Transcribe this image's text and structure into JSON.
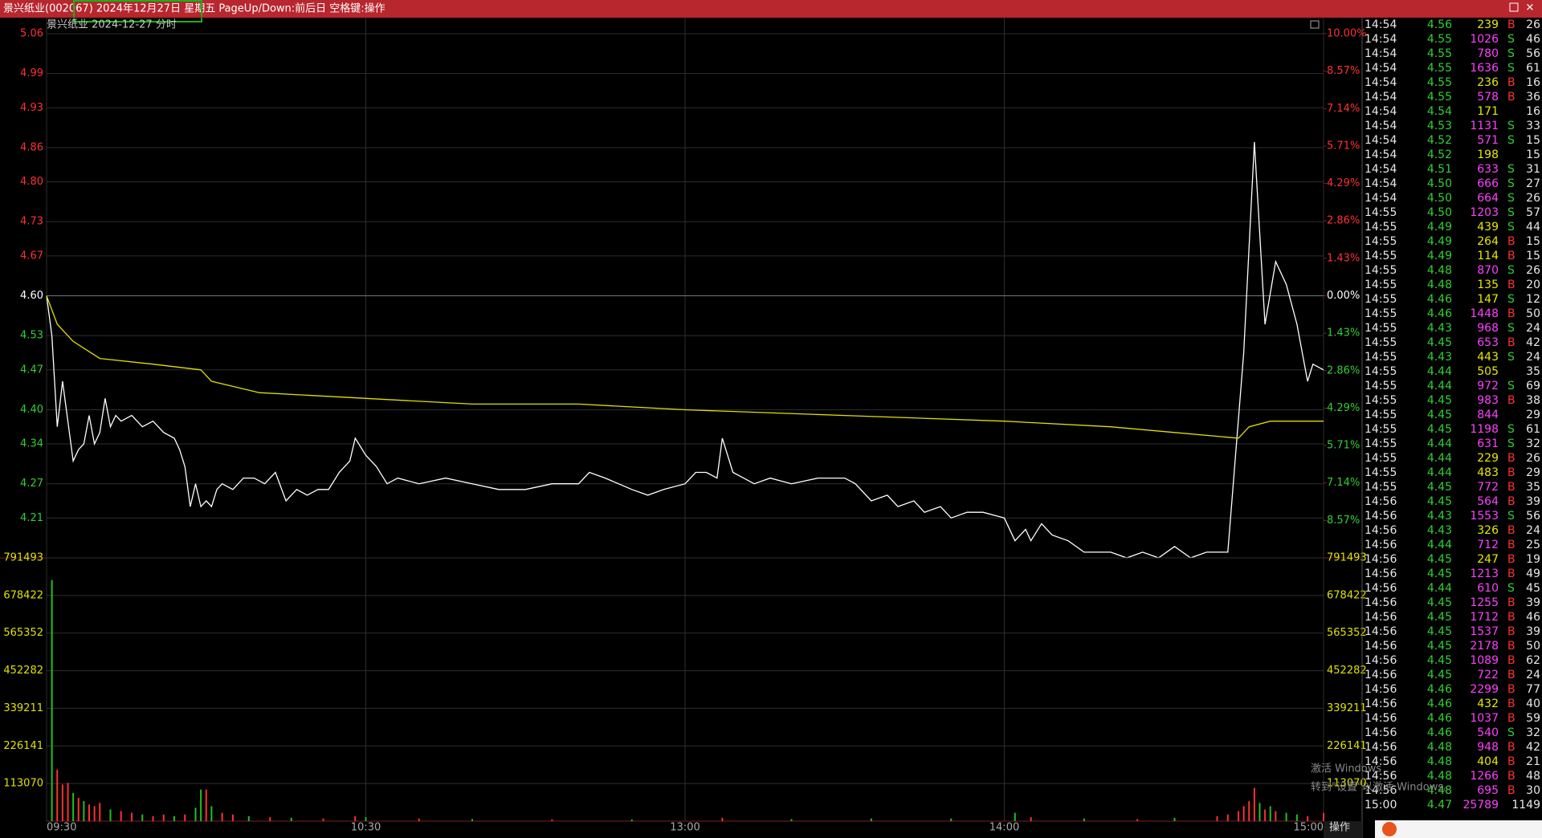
{
  "header": {
    "title": "景兴纸业(002067) 2024年12月27日 星期五 PageUp/Down:前后日 空格键:操作"
  },
  "chart_data": [
    {
      "type": "line",
      "title": "景兴纸业  2024-12-27 分时",
      "xlim": [
        0,
        240
      ],
      "xticks": [
        {
          "value": 0,
          "label": "09:30"
        },
        {
          "value": 60,
          "label": "10:30"
        },
        {
          "value": 120,
          "label": "13:00"
        },
        {
          "value": 180,
          "label": "14:00"
        },
        {
          "value": 240,
          "label": "15:00"
        }
      ],
      "ylim": [
        4.14,
        5.06
      ],
      "yticks": [
        5.06,
        4.99,
        4.93,
        4.86,
        {
          "value": 4.8,
          "label": "4.80"
        },
        4.73,
        4.67,
        {
          "value": 4.6,
          "label": "4.60"
        },
        4.53,
        4.47,
        {
          "value": 4.4,
          "label": "4.40"
        },
        4.34,
        4.27,
        4.21
      ],
      "y2lim": [
        -10,
        10
      ],
      "y2ticks": [
        {
          "value": 10,
          "label": "10.00%"
        },
        {
          "value": 8.57,
          "label": "8.57%"
        },
        {
          "value": 7.14,
          "label": "7.14%"
        },
        {
          "value": 5.71,
          "label": "5.71%"
        },
        {
          "value": 4.29,
          "label": "4.29%"
        },
        {
          "value": 2.86,
          "label": "2.86%"
        },
        {
          "value": 1.43,
          "label": "1.43%"
        },
        {
          "value": 0,
          "label": "0.00%"
        },
        {
          "value": -1.43,
          "label": "1.43%"
        },
        {
          "value": -2.86,
          "label": "2.86%"
        },
        {
          "value": -4.29,
          "label": "4.29%"
        },
        {
          "value": -5.71,
          "label": "5.71%"
        },
        {
          "value": -7.14,
          "label": "7.14%"
        },
        {
          "value": -8.57,
          "label": "8.57%"
        }
      ],
      "grid": true,
      "series": [
        {
          "color": "#ffffff",
          "x": [
            0,
            1,
            2,
            3,
            4,
            5,
            6,
            7,
            8,
            9,
            10,
            11,
            12,
            13,
            14,
            16,
            18,
            20,
            22,
            24,
            25,
            26,
            27,
            28,
            29,
            30,
            31,
            32,
            33,
            35,
            37,
            39,
            41,
            43,
            45,
            47,
            49,
            51,
            53,
            55,
            57,
            58,
            60,
            62,
            64,
            66,
            70,
            75,
            80,
            85,
            90,
            95,
            100,
            102,
            105,
            110,
            113,
            116,
            120,
            122,
            124,
            126,
            127,
            129,
            131,
            133,
            136,
            140,
            145,
            150,
            152,
            155,
            158,
            160,
            163,
            165,
            168,
            170,
            173,
            176,
            180,
            182,
            184,
            185,
            187,
            189,
            192,
            195,
            198,
            200,
            203,
            206,
            209,
            212,
            215,
            218,
            222,
            225,
            227,
            229,
            231,
            233,
            235,
            237,
            238,
            240
          ],
          "values": [
            4.6,
            4.53,
            4.37,
            4.45,
            4.38,
            4.31,
            4.33,
            4.34,
            4.39,
            4.34,
            4.36,
            4.42,
            4.37,
            4.39,
            4.38,
            4.39,
            4.37,
            4.38,
            4.36,
            4.35,
            4.33,
            4.3,
            4.23,
            4.27,
            4.23,
            4.24,
            4.23,
            4.26,
            4.27,
            4.26,
            4.28,
            4.28,
            4.27,
            4.29,
            4.24,
            4.26,
            4.25,
            4.26,
            4.26,
            4.29,
            4.31,
            4.35,
            4.32,
            4.3,
            4.27,
            4.28,
            4.27,
            4.28,
            4.27,
            4.26,
            4.26,
            4.27,
            4.27,
            4.29,
            4.28,
            4.26,
            4.25,
            4.26,
            4.27,
            4.29,
            4.29,
            4.28,
            4.35,
            4.29,
            4.28,
            4.27,
            4.28,
            4.27,
            4.28,
            4.28,
            4.27,
            4.24,
            4.25,
            4.23,
            4.24,
            4.22,
            4.23,
            4.21,
            4.22,
            4.22,
            4.21,
            4.17,
            4.19,
            4.17,
            4.2,
            4.18,
            4.17,
            4.15,
            4.15,
            4.15,
            4.14,
            4.15,
            4.14,
            4.16,
            4.14,
            4.15,
            4.15,
            4.5,
            4.87,
            4.55,
            4.66,
            4.62,
            4.55,
            4.45,
            4.48,
            4.47
          ]
        },
        {
          "color": "#e0e000",
          "x": [
            0,
            2,
            5,
            10,
            20,
            29,
            31,
            40,
            60,
            80,
            100,
            120,
            150,
            180,
            200,
            212,
            224,
            226,
            230,
            240
          ],
          "values": [
            4.6,
            4.55,
            4.52,
            4.49,
            4.48,
            4.47,
            4.45,
            4.43,
            4.42,
            4.41,
            4.41,
            4.4,
            4.39,
            4.38,
            4.37,
            4.36,
            4.35,
            4.37,
            4.38,
            4.38
          ]
        }
      ]
    },
    {
      "type": "bar",
      "ylim": [
        0,
        791493
      ],
      "yticks": [
        791493,
        678422,
        565352,
        452282,
        339211,
        226141,
        113070
      ],
      "x": [
        1,
        2,
        3,
        4,
        5,
        6,
        7,
        8,
        9,
        10,
        12,
        14,
        16,
        18,
        20,
        22,
        24,
        26,
        28,
        29,
        30,
        31,
        33,
        35,
        38,
        42,
        46,
        52,
        58,
        60,
        70,
        80,
        95,
        110,
        127,
        140,
        155,
        170,
        182,
        185,
        195,
        205,
        212,
        220,
        222,
        224,
        225,
        226,
        227,
        228,
        229,
        230,
        231,
        233,
        235,
        237,
        240
      ],
      "values": [
        725000,
        155000,
        110000,
        115000,
        85000,
        70000,
        60000,
        50000,
        45000,
        55000,
        35000,
        30000,
        25000,
        20000,
        15000,
        20000,
        15000,
        20000,
        40000,
        95000,
        95000,
        45000,
        25000,
        20000,
        15000,
        12000,
        10000,
        8000,
        15000,
        12000,
        8000,
        6000,
        5000,
        5000,
        10000,
        6000,
        8000,
        8000,
        25000,
        12000,
        8000,
        6000,
        10000,
        15000,
        20000,
        30000,
        45000,
        60000,
        100000,
        55000,
        35000,
        45000,
        30000,
        25000,
        20000,
        15000,
        25000
      ],
      "bar_colors": [
        "#20c020",
        "#ff3030",
        "#ff3030",
        "#ff3030",
        "#20c020",
        "#ff3030",
        "#20c020",
        "#ff3030",
        "#ff3030",
        "#ff3030",
        "#20c020",
        "#ff3030",
        "#ff3030",
        "#20c020",
        "#ff3030",
        "#ff3030",
        "#20c020",
        "#ff3030",
        "#20c020",
        "#20c020",
        "#ff3030",
        "#20c020",
        "#ff3030",
        "#ff3030",
        "#20c020",
        "#ff3030",
        "#20c020",
        "#ff3030",
        "#ff3030",
        "#20c020",
        "#ff3030",
        "#20c020",
        "#ff3030",
        "#20c020",
        "#ff3030",
        "#20c020",
        "#20c020",
        "#20c020",
        "#20c020",
        "#ff3030",
        "#20c020",
        "#ff3030",
        "#20c020",
        "#ff3030",
        "#ff3030",
        "#ff3030",
        "#ff3030",
        "#ff3030",
        "#ff3030",
        "#20c020",
        "#ff3030",
        "#20c020",
        "#ff3030",
        "#20c020",
        "#20c020",
        "#ff3030",
        "#ff3030"
      ]
    }
  ],
  "trades": {
    "rows": [
      {
        "time": "14:54",
        "price": "4.56",
        "volume": "239",
        "side": "B",
        "count": "26"
      },
      {
        "time": "14:54",
        "price": "4.55",
        "volume": "1026",
        "side": "S",
        "count": "46"
      },
      {
        "time": "14:54",
        "price": "4.55",
        "volume": "780",
        "side": "S",
        "count": "56"
      },
      {
        "time": "14:54",
        "price": "4.55",
        "volume": "1636",
        "side": "S",
        "count": "61"
      },
      {
        "time": "14:54",
        "price": "4.55",
        "volume": "236",
        "side": "B",
        "count": "16"
      },
      {
        "time": "14:54",
        "price": "4.55",
        "volume": "578",
        "side": "B",
        "count": "36"
      },
      {
        "time": "14:54",
        "price": "4.54",
        "volume": "171",
        "count": "16"
      },
      {
        "time": "14:54",
        "price": "4.53",
        "volume": "1131",
        "side": "S",
        "count": "33"
      },
      {
        "time": "14:54",
        "price": "4.52",
        "volume": "571",
        "side": "S",
        "count": "15"
      },
      {
        "time": "14:54",
        "price": "4.52",
        "volume": "198",
        "count": "15"
      },
      {
        "time": "14:54",
        "price": "4.51",
        "volume": "633",
        "side": "S",
        "count": "31"
      },
      {
        "time": "14:54",
        "price": "4.50",
        "volume": "666",
        "side": "S",
        "count": "27"
      },
      {
        "time": "14:54",
        "price": "4.50",
        "volume": "664",
        "side": "S",
        "count": "26"
      },
      {
        "time": "14:55",
        "price": "4.50",
        "volume": "1203",
        "side": "S",
        "count": "57"
      },
      {
        "time": "14:55",
        "price": "4.49",
        "volume": "439",
        "side": "S",
        "count": "44"
      },
      {
        "time": "14:55",
        "price": "4.49",
        "volume": "264",
        "side": "B",
        "count": "15"
      },
      {
        "time": "14:55",
        "price": "4.49",
        "volume": "114",
        "side": "B",
        "count": "15"
      },
      {
        "time": "14:55",
        "price": "4.48",
        "volume": "870",
        "side": "S",
        "count": "26"
      },
      {
        "time": "14:55",
        "price": "4.48",
        "volume": "135",
        "side": "B",
        "count": "20"
      },
      {
        "time": "14:55",
        "price": "4.46",
        "volume": "147",
        "side": "S",
        "count": "12"
      },
      {
        "time": "14:55",
        "price": "4.46",
        "volume": "1448",
        "side": "B",
        "count": "50"
      },
      {
        "time": "14:55",
        "price": "4.43",
        "volume": "968",
        "side": "S",
        "count": "24"
      },
      {
        "time": "14:55",
        "price": "4.45",
        "volume": "653",
        "side": "B",
        "count": "42"
      },
      {
        "time": "14:55",
        "price": "4.43",
        "volume": "443",
        "side": "S",
        "count": "24"
      },
      {
        "time": "14:55",
        "price": "4.44",
        "volume": "505",
        "count": "35"
      },
      {
        "time": "14:55",
        "price": "4.44",
        "volume": "972",
        "side": "S",
        "count": "69"
      },
      {
        "time": "14:55",
        "price": "4.45",
        "volume": "983",
        "side": "B",
        "count": "38"
      },
      {
        "time": "14:55",
        "price": "4.45",
        "volume": "844",
        "count": "29"
      },
      {
        "time": "14:55",
        "price": "4.45",
        "volume": "1198",
        "side": "S",
        "count": "61"
      },
      {
        "time": "14:55",
        "price": "4.44",
        "volume": "631",
        "side": "S",
        "count": "32"
      },
      {
        "time": "14:55",
        "price": "4.44",
        "volume": "229",
        "side": "B",
        "count": "26"
      },
      {
        "time": "14:55",
        "price": "4.44",
        "volume": "483",
        "side": "B",
        "count": "29"
      },
      {
        "time": "14:55",
        "price": "4.45",
        "volume": "772",
        "side": "B",
        "count": "35"
      },
      {
        "time": "14:56",
        "price": "4.45",
        "volume": "564",
        "side": "B",
        "count": "39"
      },
      {
        "time": "14:56",
        "price": "4.43",
        "volume": "1553",
        "side": "S",
        "count": "56"
      },
      {
        "time": "14:56",
        "price": "4.43",
        "volume": "326",
        "side": "B",
        "count": "24"
      },
      {
        "time": "14:56",
        "price": "4.44",
        "volume": "712",
        "side": "B",
        "count": "25"
      },
      {
        "time": "14:56",
        "price": "4.45",
        "volume": "247",
        "side": "B",
        "count": "19"
      },
      {
        "time": "14:56",
        "price": "4.45",
        "volume": "1213",
        "side": "B",
        "count": "49"
      },
      {
        "time": "14:56",
        "price": "4.44",
        "volume": "610",
        "side": "S",
        "count": "45"
      },
      {
        "time": "14:56",
        "price": "4.45",
        "volume": "1255",
        "side": "B",
        "count": "39"
      },
      {
        "time": "14:56",
        "price": "4.45",
        "volume": "1712",
        "side": "B",
        "count": "46"
      },
      {
        "time": "14:56",
        "price": "4.45",
        "volume": "1537",
        "side": "B",
        "count": "39"
      },
      {
        "time": "14:56",
        "price": "4.45",
        "volume": "2178",
        "side": "B",
        "count": "50"
      },
      {
        "time": "14:56",
        "price": "4.45",
        "volume": "1089",
        "side": "B",
        "count": "62"
      },
      {
        "time": "14:56",
        "price": "4.45",
        "volume": "722",
        "side": "B",
        "count": "24"
      },
      {
        "time": "14:56",
        "price": "4.46",
        "volume": "2299",
        "side": "B",
        "count": "77"
      },
      {
        "time": "14:56",
        "price": "4.46",
        "volume": "432",
        "side": "B",
        "count": "40"
      },
      {
        "time": "14:56",
        "price": "4.46",
        "volume": "1037",
        "side": "B",
        "count": "59"
      },
      {
        "time": "14:56",
        "price": "4.46",
        "volume": "540",
        "side": "S",
        "count": "32"
      },
      {
        "time": "14:56",
        "price": "4.48",
        "volume": "948",
        "side": "B",
        "count": "42"
      },
      {
        "time": "14:56",
        "price": "4.48",
        "volume": "404",
        "side": "B",
        "count": "21"
      },
      {
        "time": "14:56",
        "price": "4.48",
        "volume": "1266",
        "side": "B",
        "count": "48"
      },
      {
        "time": "14:56",
        "price": "4.48",
        "volume": "695",
        "side": "B",
        "count": "30"
      },
      {
        "time": "15:00",
        "price": "4.47",
        "volume": "25789",
        "count": "1149"
      }
    ]
  },
  "footer": {
    "button": "操作"
  },
  "watermark": {
    "line1": "激活 Windows",
    "line2": "转到\"设置\"以激活 Windows。"
  }
}
